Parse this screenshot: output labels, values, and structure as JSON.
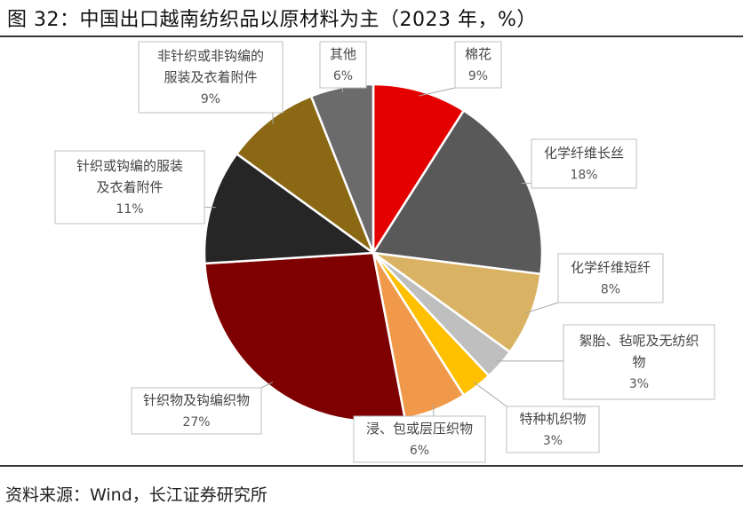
{
  "title": "图 32：中国出口越南纺织品以原材料为主（2023 年，%）",
  "source": "资料来源：Wind，长江证券研究所",
  "chart_data": {
    "type": "pie",
    "title": "图 32：中国出口越南纺织品以原材料为主（2023 年，%）",
    "unit": "%",
    "slices": [
      {
        "name": "棉花",
        "value": 9,
        "label": "9%",
        "color": "#e50000"
      },
      {
        "name": "化学纤维长丝",
        "value": 18,
        "label": "18%",
        "color": "#595959"
      },
      {
        "name": "化学纤维短纤",
        "value": 8,
        "label": "8%",
        "color": "#d9b263"
      },
      {
        "name": "絮胎、毡呢及无纺织物",
        "value": 3,
        "label": "3%",
        "color": "#bfbfbf"
      },
      {
        "name": "特种机织物",
        "value": 3,
        "label": "3%",
        "color": "#ffc000"
      },
      {
        "name": "浸、包或层压织物",
        "value": 6,
        "label": "6%",
        "color": "#f0994a"
      },
      {
        "name": "针织物及钩编织物",
        "value": 27,
        "label": "27%",
        "color": "#7f0000"
      },
      {
        "name": "针织或钩编的服装及衣着附件",
        "value": 11,
        "label": "11%",
        "color": "#262626"
      },
      {
        "name": "非针织或非钩编的服装及衣着附件",
        "value": 9,
        "label": "9%",
        "color": "#8b6914"
      },
      {
        "name": "其他",
        "value": 6,
        "label": "6%",
        "color": "#6b6b6b"
      }
    ]
  }
}
